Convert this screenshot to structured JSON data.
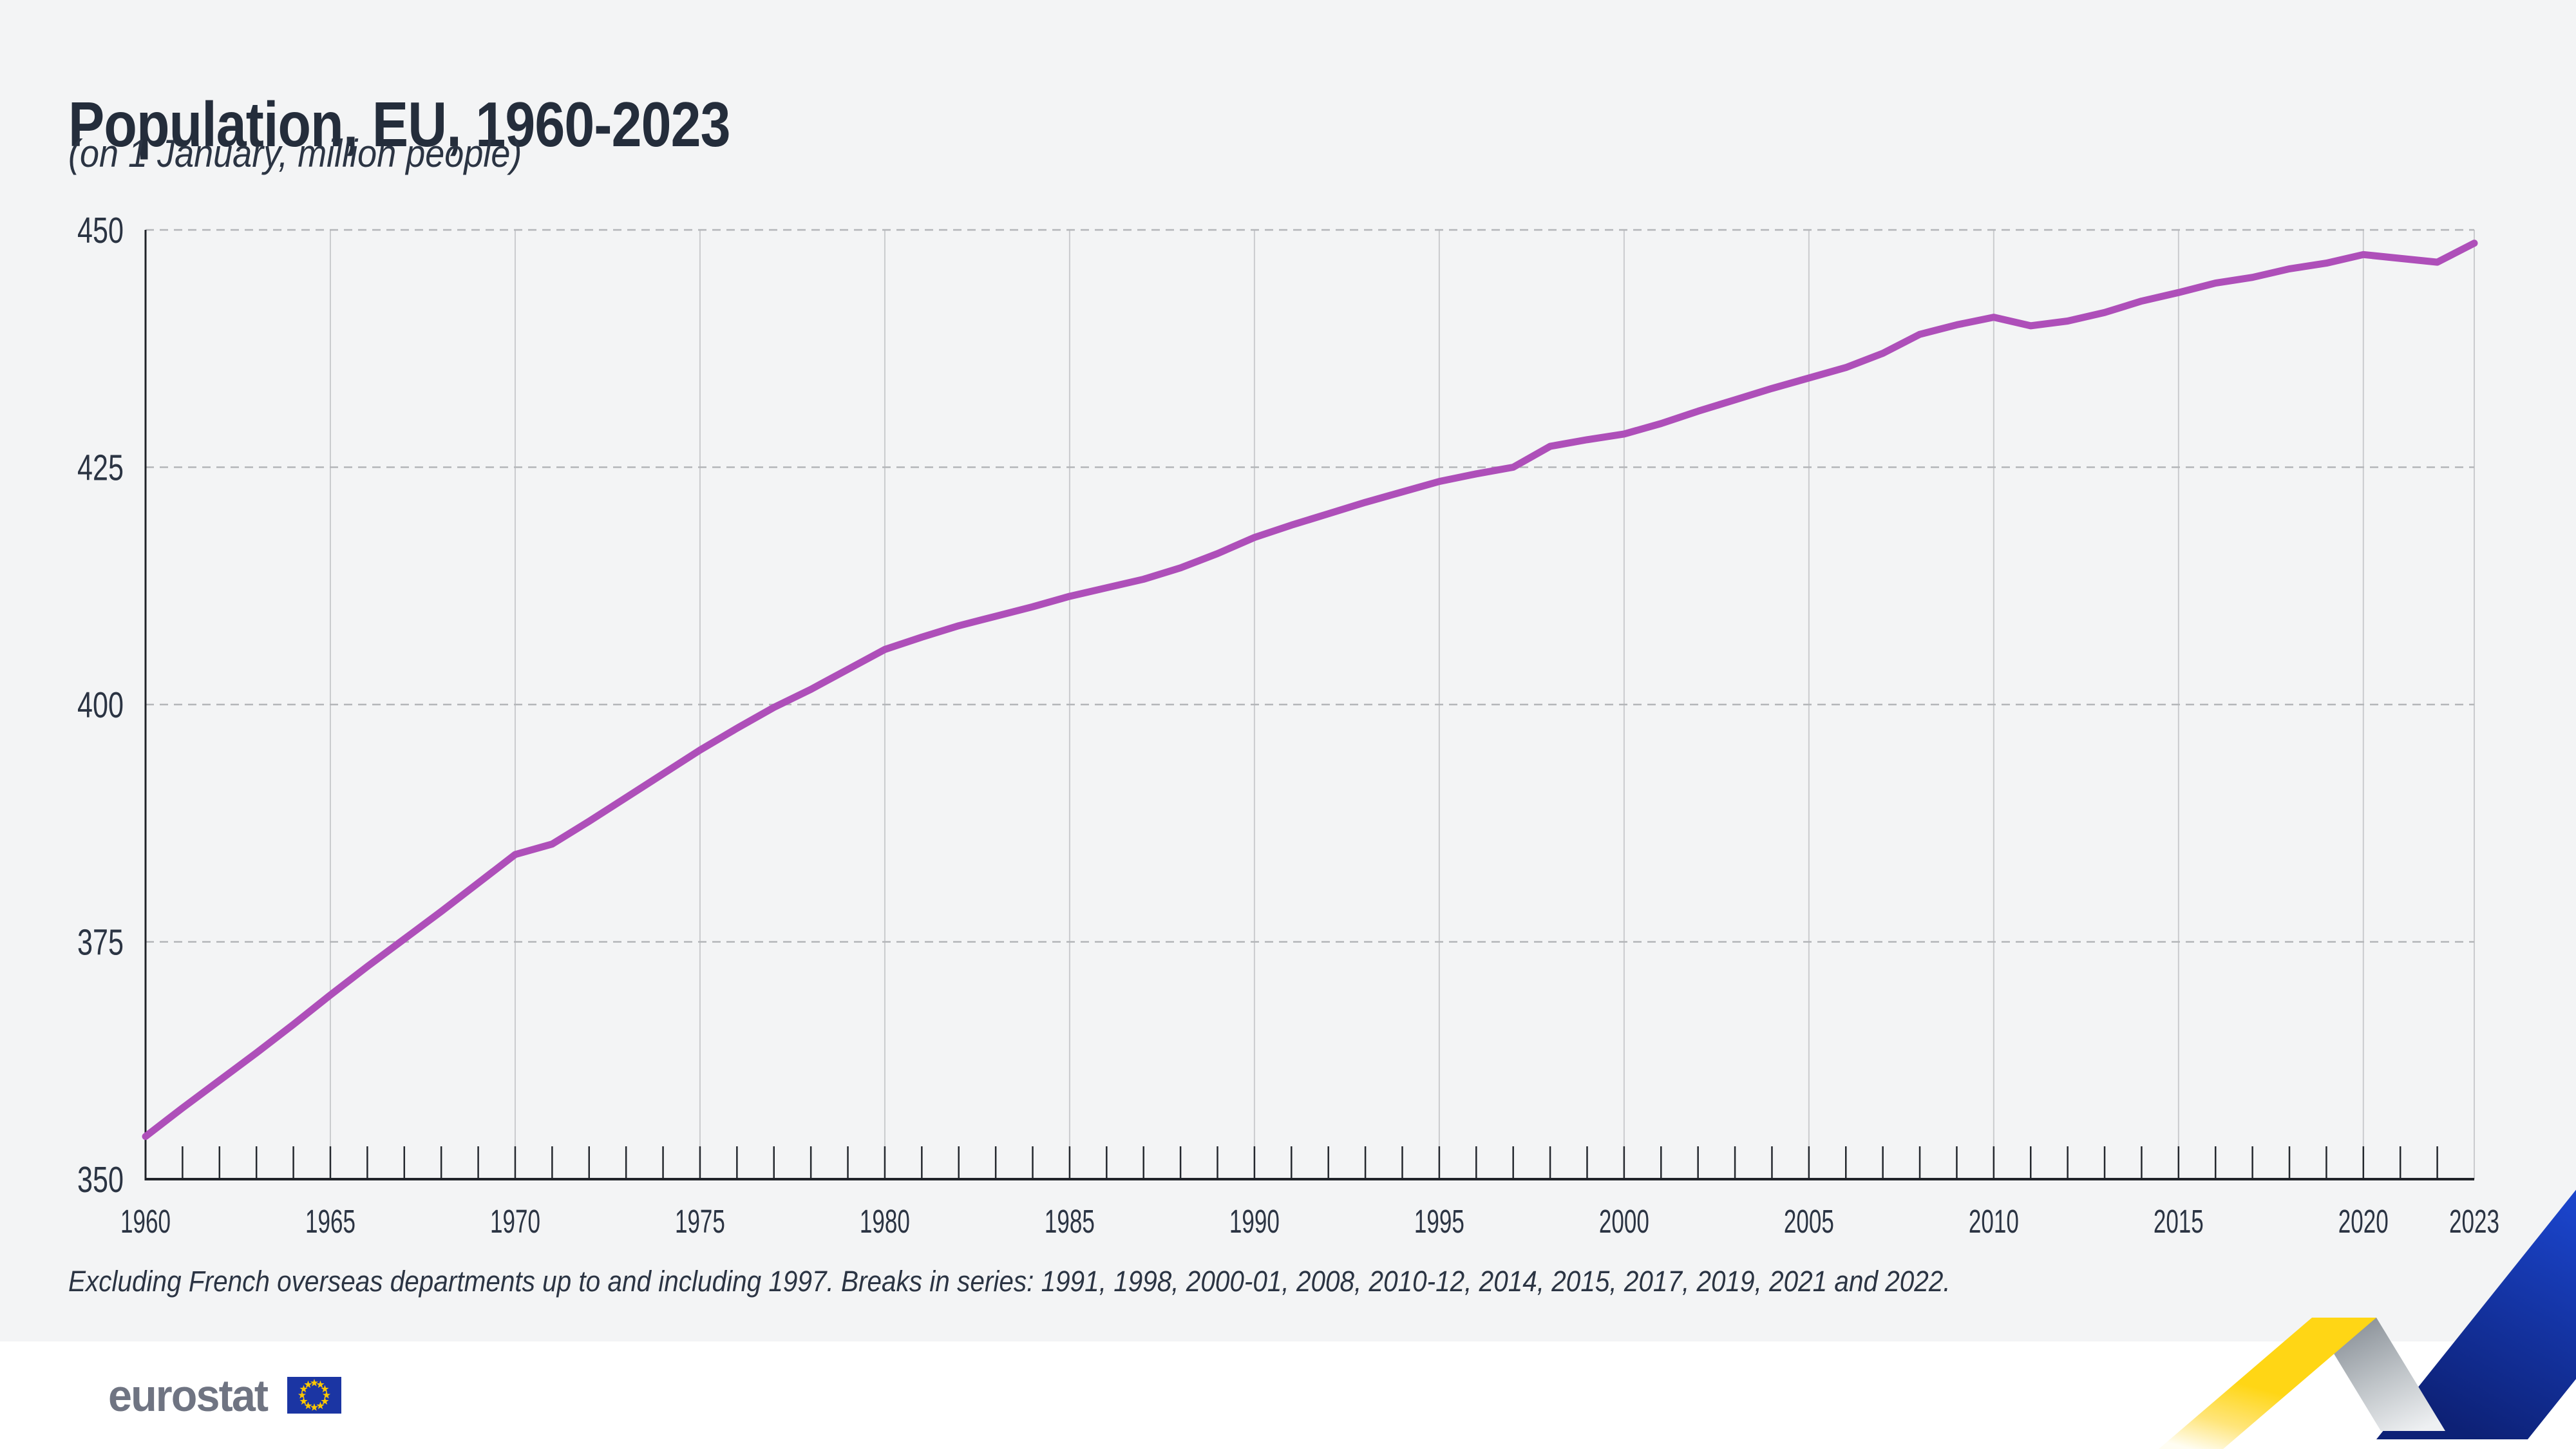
{
  "header": {
    "title": "Population, EU, 1960-2023",
    "subtitle": "(on 1 January, million people)"
  },
  "chart_data": {
    "type": "line",
    "title": "Population, EU, 1960-2023",
    "xlabel": "",
    "ylabel": "million people (on 1 January)",
    "ylim": [
      350,
      450
    ],
    "xlim": [
      1960,
      2023
    ],
    "yticks": [
      350,
      375,
      400,
      425,
      450
    ],
    "xticks": [
      1960,
      1965,
      1970,
      1975,
      1980,
      1985,
      1990,
      1995,
      2000,
      2005,
      2010,
      2015,
      2020,
      2023
    ],
    "grid": "solid light vertical lines every 5 years; dashed horizontal lines every 25 units; yearly minor ticks on x-axis",
    "legend_position": "none",
    "line_color": "#ae4fb9",
    "x": [
      1960,
      1961,
      1962,
      1963,
      1964,
      1965,
      1966,
      1967,
      1968,
      1969,
      1970,
      1971,
      1972,
      1973,
      1974,
      1975,
      1976,
      1977,
      1978,
      1979,
      1980,
      1981,
      1982,
      1983,
      1984,
      1985,
      1986,
      1987,
      1988,
      1989,
      1990,
      1991,
      1992,
      1993,
      1994,
      1995,
      1996,
      1997,
      1998,
      1999,
      2000,
      2001,
      2002,
      2003,
      2004,
      2005,
      2006,
      2007,
      2008,
      2009,
      2010,
      2011,
      2012,
      2013,
      2014,
      2015,
      2016,
      2017,
      2018,
      2019,
      2020,
      2021,
      2022,
      2023
    ],
    "series": [
      {
        "name": "EU population",
        "values": [
          354.5,
          357.5,
          360.4,
          363.3,
          366.3,
          369.4,
          372.4,
          375.3,
          378.2,
          381.2,
          384.2,
          385.3,
          387.7,
          390.2,
          392.7,
          395.2,
          397.5,
          399.7,
          401.6,
          403.7,
          405.8,
          407.1,
          408.3,
          409.3,
          410.3,
          411.4,
          412.3,
          413.2,
          414.4,
          415.9,
          417.6,
          418.9,
          420.1,
          421.3,
          422.4,
          423.5,
          424.3,
          425.0,
          427.2,
          427.9,
          428.5,
          429.6,
          430.9,
          432.1,
          433.3,
          434.4,
          435.5,
          437.0,
          439.0,
          440.0,
          440.8,
          439.9,
          440.4,
          441.3,
          442.5,
          443.4,
          444.4,
          445.0,
          445.9,
          446.5,
          447.4,
          447.0,
          446.6,
          448.6
        ]
      }
    ]
  },
  "footnote": {
    "text": "Excluding French overseas departments up to and including 1997. Breaks in series: 1991, 1998, 2000-01, 2008, 2010-12, 2014, 2015, 2017, 2019, 2021 and 2022."
  },
  "footer": {
    "logo_text": "eurostat"
  },
  "colors": {
    "canvas_background": "#f3f4f5",
    "footer_background": "#ffffff",
    "title_text": "#242d3b",
    "axis_text": "#2b3443",
    "axis_line": "#202329",
    "tick_mark": "#24282e",
    "grid_vertical": "#cacbce",
    "grid_dashed": "#b4b6b9",
    "data_line": "#ae4fb9",
    "logo_gray": "#6f7482",
    "flag_blue": "#1b35a3",
    "flag_star_yellow": "#fdc800",
    "ribbon_yellow": "#ffd615",
    "ribbon_gray_dark": "#848b93",
    "ribbon_gray_light": "#eef0f2",
    "ribbon_blue_dark": "#0d2176",
    "ribbon_blue_bright": "#2e61f1"
  }
}
